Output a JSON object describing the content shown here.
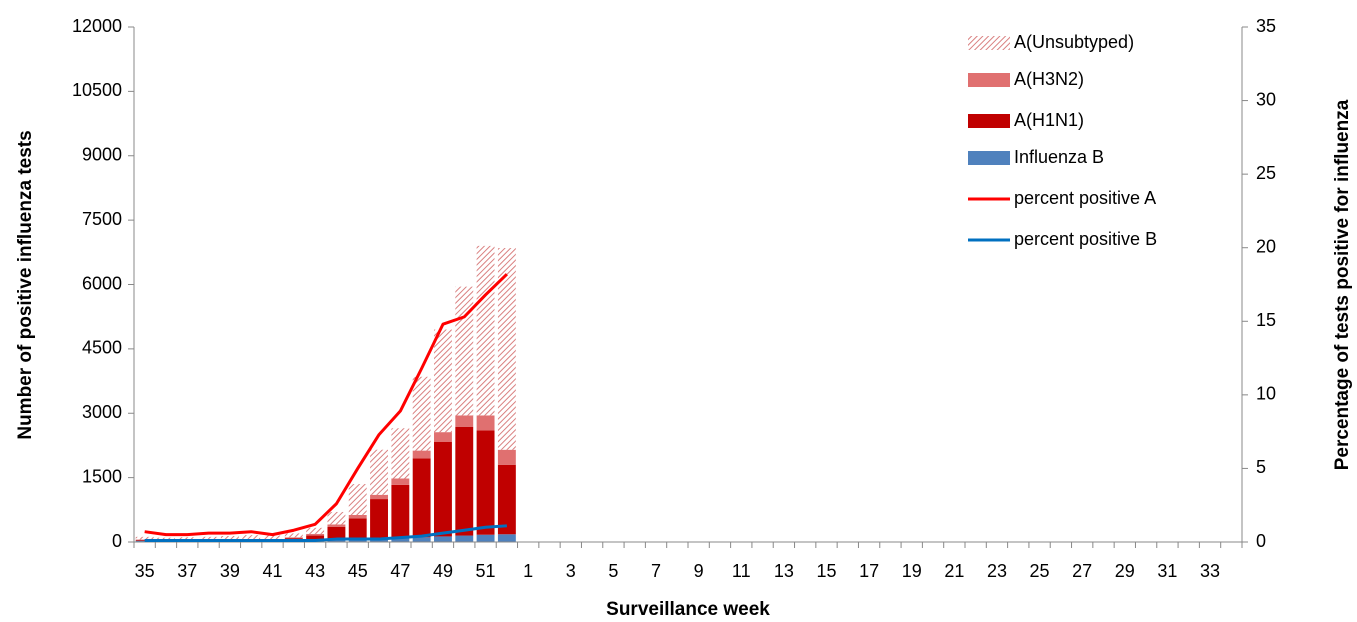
{
  "chart_data": {
    "type": "bar-line",
    "x_label": "Surveillance  week",
    "y_label": "Number of positive influenza tests",
    "y2_label": "Percentage of tests positive for influenza",
    "categories": [
      "35",
      null,
      "37",
      null,
      "39",
      null,
      "41",
      null,
      "43",
      null,
      "45",
      null,
      "47",
      null,
      "49",
      null,
      "51",
      null,
      "1",
      null,
      "3",
      null,
      "5",
      null,
      "7",
      null,
      "9",
      null,
      "11",
      null,
      "13",
      null,
      "15",
      null,
      "17",
      null,
      "19",
      null,
      "21",
      null,
      "23",
      null,
      "25",
      null,
      "27",
      null,
      "29",
      null,
      "31",
      null,
      "33",
      null
    ],
    "ylim": [
      0,
      12000
    ],
    "yticks": [
      0,
      1500,
      3000,
      4500,
      6000,
      7500,
      9000,
      10500,
      12000
    ],
    "y2lim": [
      0,
      35
    ],
    "y2ticks": [
      0,
      5,
      10,
      15,
      20,
      25,
      30,
      35
    ],
    "legend": "upper right",
    "series": [
      {
        "name": "Influenza B",
        "type": "bar",
        "color": "#4f81bd",
        "values": [
          30,
          25,
          25,
          30,
          30,
          30,
          30,
          40,
          50,
          60,
          70,
          80,
          90,
          110,
          130,
          150,
          170,
          180,
          null,
          null,
          null,
          null,
          null,
          null,
          null,
          null,
          null,
          null,
          null,
          null,
          null,
          null,
          null,
          null,
          null,
          null,
          null,
          null,
          null,
          null,
          null,
          null,
          null,
          null,
          null,
          null,
          null,
          null,
          null,
          null,
          null,
          null
        ]
      },
      {
        "name": "A(H1N1)",
        "type": "bar",
        "color": "#c00000",
        "values": [
          20,
          20,
          20,
          25,
          30,
          30,
          30,
          50,
          100,
          290,
          480,
          920,
          1240,
          1840,
          2200,
          2530,
          2430,
          1620,
          null,
          null,
          null,
          null,
          null,
          null,
          null,
          null,
          null,
          null,
          null,
          null,
          null,
          null,
          null,
          null,
          null,
          null,
          null,
          null,
          null,
          null,
          null,
          null,
          null,
          null,
          null,
          null,
          null,
          null,
          null,
          null,
          null,
          null
        ]
      },
      {
        "name": "A(H3N2)",
        "type": "bar",
        "color": "#e07070",
        "values": [
          10,
          10,
          10,
          10,
          10,
          10,
          10,
          20,
          40,
          60,
          80,
          100,
          150,
          180,
          230,
          270,
          350,
          350,
          null,
          null,
          null,
          null,
          null,
          null,
          null,
          null,
          null,
          null,
          null,
          null,
          null,
          null,
          null,
          null,
          null,
          null,
          null,
          null,
          null,
          null,
          null,
          null,
          null,
          null,
          null,
          null,
          null,
          null,
          null,
          null,
          null,
          null
        ]
      },
      {
        "name": "A(Unsubtyped)",
        "type": "bar",
        "color": "#d98080",
        "pattern": "hatch",
        "values": [
          60,
          45,
          55,
          55,
          70,
          90,
          80,
          90,
          140,
          290,
          720,
          1050,
          1170,
          1720,
          2390,
          3000,
          3950,
          4700,
          null,
          null,
          null,
          null,
          null,
          null,
          null,
          null,
          null,
          null,
          null,
          null,
          null,
          null,
          null,
          null,
          null,
          null,
          null,
          null,
          null,
          null,
          null,
          null,
          null,
          null,
          null,
          null,
          null,
          null,
          null,
          null,
          null,
          null
        ]
      },
      {
        "name": "percent positive A",
        "type": "line",
        "axis": "y2",
        "color": "#ff0000",
        "values": [
          0.7,
          0.5,
          0.5,
          0.6,
          0.6,
          0.7,
          0.5,
          0.8,
          1.2,
          2.6,
          5,
          7.3,
          8.9,
          11.8,
          14.8,
          15.3,
          16.8,
          18.2,
          null,
          null,
          null,
          null,
          null,
          null,
          null,
          null,
          null,
          null,
          null,
          null,
          null,
          null,
          null,
          null,
          null,
          null,
          null,
          null,
          null,
          null,
          null,
          null,
          null,
          null,
          null,
          null,
          null,
          null,
          null,
          null,
          null,
          null
        ]
      },
      {
        "name": "percent positive B",
        "type": "line",
        "axis": "y2",
        "color": "#0070c0",
        "values": [
          0.1,
          0.1,
          0.1,
          0.1,
          0.1,
          0.1,
          0.1,
          0.1,
          0.1,
          0.2,
          0.2,
          0.2,
          0.3,
          0.4,
          0.6,
          0.8,
          1.0,
          1.1,
          null,
          null,
          null,
          null,
          null,
          null,
          null,
          null,
          null,
          null,
          null,
          null,
          null,
          null,
          null,
          null,
          null,
          null,
          null,
          null,
          null,
          null,
          null,
          null,
          null,
          null,
          null,
          null,
          null,
          null,
          null,
          null,
          null,
          null
        ]
      }
    ]
  }
}
